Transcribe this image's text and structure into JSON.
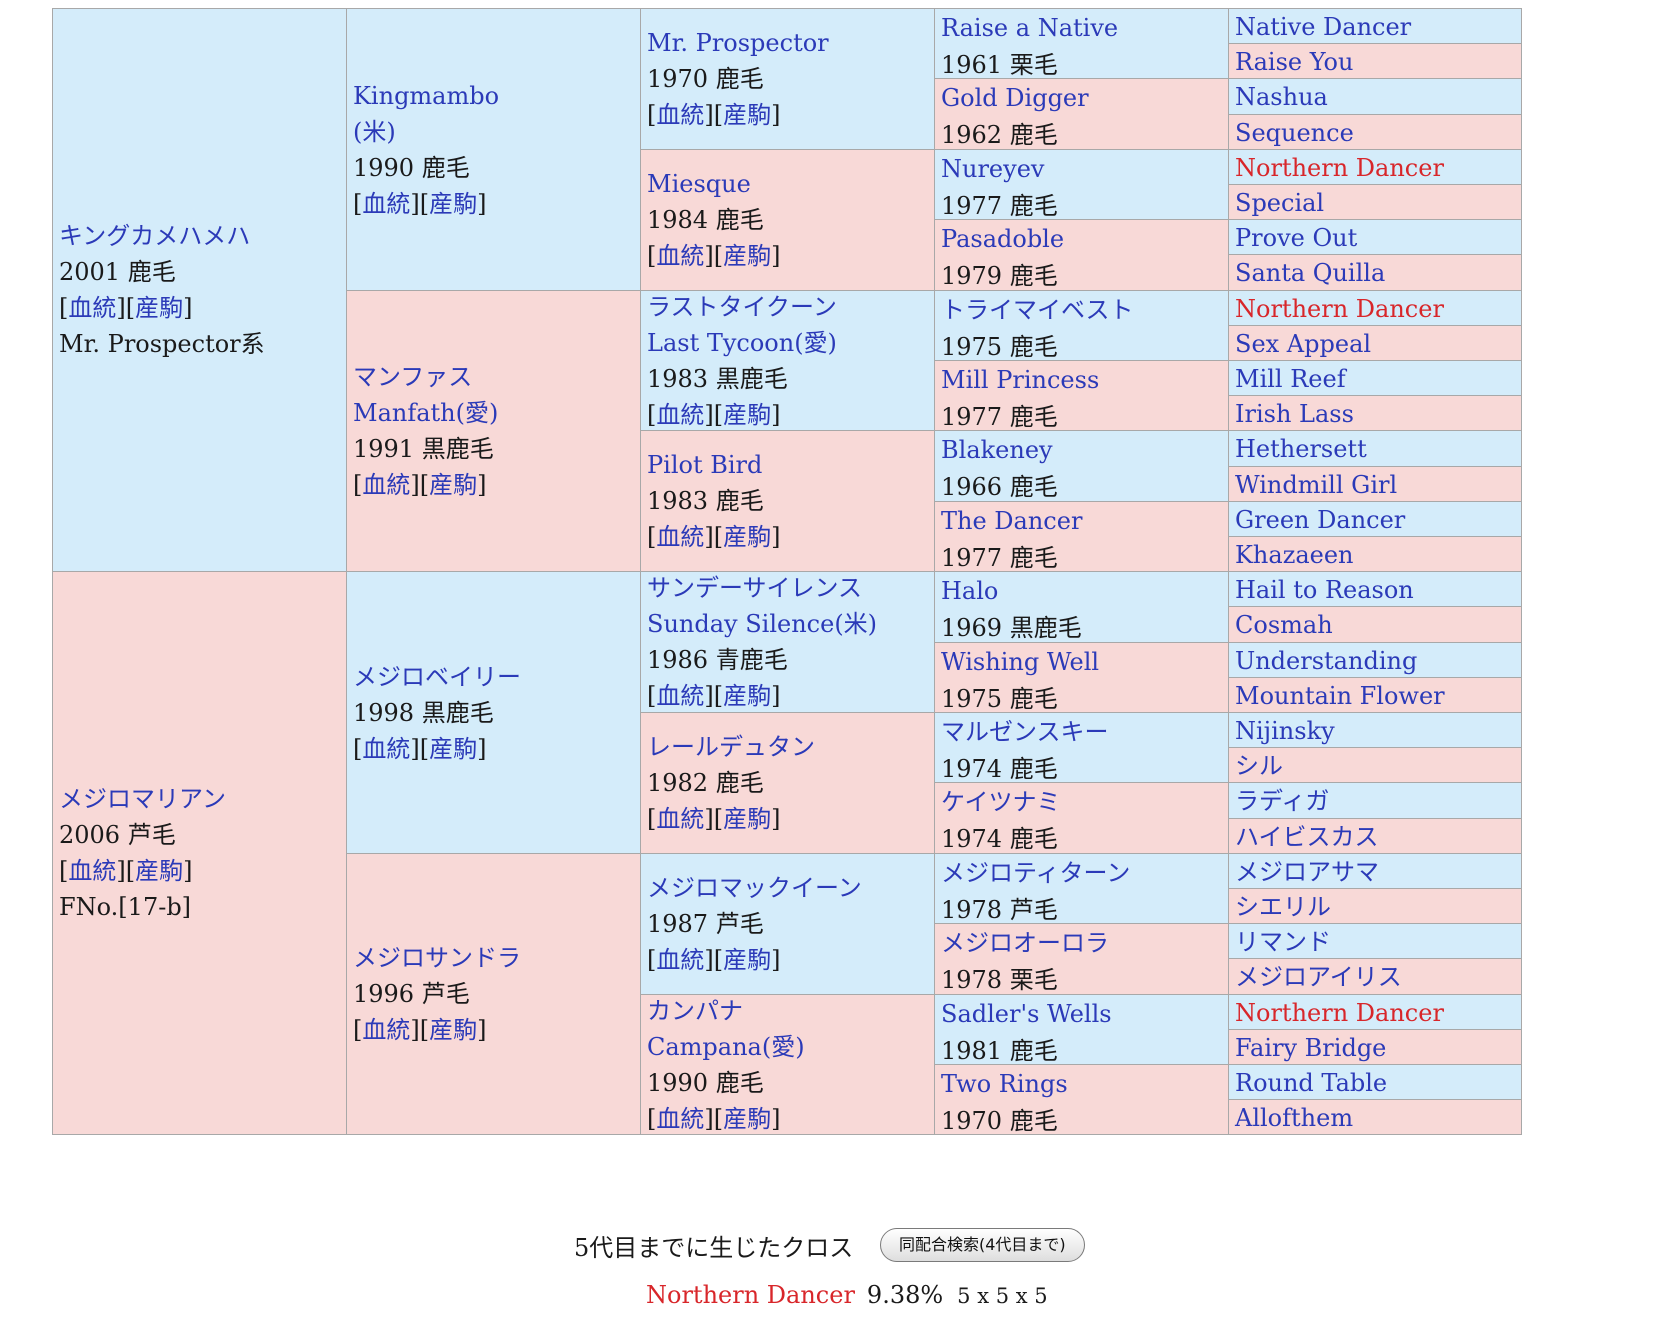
{
  "pedigree": {
    "g1": [
      {
        "name": "キングカメハメハ",
        "info": "2001 鹿毛",
        "extra": "Mr. Prospector系",
        "sex": "male"
      },
      {
        "name": "メジロマリアン",
        "info": "2006 芦毛",
        "extra": "FNo.[17-b]",
        "sex": "female"
      }
    ],
    "g2": [
      {
        "name": "Kingmambo",
        "name2": "(米)",
        "info": "1990 鹿毛",
        "sex": "male"
      },
      {
        "name": "マンファス",
        "name2": "Manfath(愛)",
        "info": "1991 黒鹿毛",
        "sex": "female"
      },
      {
        "name": "メジロベイリー",
        "info": "1998 黒鹿毛",
        "sex": "male"
      },
      {
        "name": "メジロサンドラ",
        "info": "1996 芦毛",
        "sex": "female"
      }
    ],
    "g3": [
      {
        "name": "Mr. Prospector",
        "info": "1970 鹿毛",
        "sex": "male"
      },
      {
        "name": "Miesque",
        "info": "1984 鹿毛",
        "sex": "female"
      },
      {
        "name": "ラストタイクーン",
        "name2": "Last Tycoon(愛)",
        "info": "1983 黒鹿毛",
        "sex": "male"
      },
      {
        "name": "Pilot Bird",
        "info": "1983 鹿毛",
        "sex": "female"
      },
      {
        "name": "サンデーサイレンス",
        "name2": "Sunday Silence(米)",
        "info": "1986 青鹿毛",
        "sex": "male"
      },
      {
        "name": "レールデュタン",
        "info": "1982 鹿毛",
        "sex": "female"
      },
      {
        "name": "メジロマックイーン",
        "info": "1987 芦毛",
        "sex": "male"
      },
      {
        "name": "カンパナ",
        "name2": "Campana(愛)",
        "info": "1990 鹿毛",
        "sex": "female"
      }
    ],
    "g4": [
      {
        "name": "Raise a Native",
        "info": "1961 栗毛",
        "sex": "male"
      },
      {
        "name": "Gold Digger",
        "info": "1962 鹿毛",
        "sex": "female"
      },
      {
        "name": "Nureyev",
        "info": "1977 鹿毛",
        "sex": "male"
      },
      {
        "name": "Pasadoble",
        "info": "1979 鹿毛",
        "sex": "female"
      },
      {
        "name": "トライマイベスト",
        "info": "1975 鹿毛",
        "sex": "male"
      },
      {
        "name": "Mill Princess",
        "info": "1977 鹿毛",
        "sex": "female"
      },
      {
        "name": "Blakeney",
        "info": "1966 鹿毛",
        "sex": "male"
      },
      {
        "name": "The Dancer",
        "info": "1977 鹿毛",
        "sex": "female"
      },
      {
        "name": "Halo",
        "info": "1969 黒鹿毛",
        "sex": "male"
      },
      {
        "name": "Wishing Well",
        "info": "1975 鹿毛",
        "sex": "female"
      },
      {
        "name": "マルゼンスキー",
        "info": "1974 鹿毛",
        "sex": "male"
      },
      {
        "name": "ケイツナミ",
        "info": "1974 鹿毛",
        "sex": "female"
      },
      {
        "name": "メジロティターン",
        "info": "1978 芦毛",
        "sex": "male"
      },
      {
        "name": "メジロオーロラ",
        "info": "1978 栗毛",
        "sex": "female"
      },
      {
        "name": "Sadler's Wells",
        "info": "1981 鹿毛",
        "sex": "male"
      },
      {
        "name": "Two Rings",
        "info": "1970 鹿毛",
        "sex": "female"
      }
    ],
    "g5": [
      {
        "name": "Native Dancer",
        "sex": "male"
      },
      {
        "name": "Raise You",
        "sex": "female"
      },
      {
        "name": "Nashua",
        "sex": "male"
      },
      {
        "name": "Sequence",
        "sex": "female"
      },
      {
        "name": "Northern Dancer",
        "sex": "male",
        "cross": true
      },
      {
        "name": "Special",
        "sex": "female"
      },
      {
        "name": "Prove Out",
        "sex": "male"
      },
      {
        "name": "Santa Quilla",
        "sex": "female"
      },
      {
        "name": "Northern Dancer",
        "sex": "male",
        "cross": true
      },
      {
        "name": "Sex Appeal",
        "sex": "female"
      },
      {
        "name": "Mill Reef",
        "sex": "male"
      },
      {
        "name": "Irish Lass",
        "sex": "female"
      },
      {
        "name": "Hethersett",
        "sex": "male"
      },
      {
        "name": "Windmill Girl",
        "sex": "female"
      },
      {
        "name": "Green Dancer",
        "sex": "male"
      },
      {
        "name": "Khazaeen",
        "sex": "female"
      },
      {
        "name": "Hail to Reason",
        "sex": "male"
      },
      {
        "name": "Cosmah",
        "sex": "female"
      },
      {
        "name": "Understanding",
        "sex": "male"
      },
      {
        "name": "Mountain Flower",
        "sex": "female"
      },
      {
        "name": "Nijinsky",
        "sex": "male"
      },
      {
        "name": "シル",
        "sex": "female"
      },
      {
        "name": "ラディガ",
        "sex": "male"
      },
      {
        "name": "ハイビスカス",
        "sex": "female"
      },
      {
        "name": "メジロアサマ",
        "sex": "male"
      },
      {
        "name": "シエリル",
        "sex": "female"
      },
      {
        "name": "リマンド",
        "sex": "male"
      },
      {
        "name": "メジロアイリス",
        "sex": "female"
      },
      {
        "name": "Northern Dancer",
        "sex": "male",
        "cross": true
      },
      {
        "name": "Fairy Bridge",
        "sex": "female"
      },
      {
        "name": "Round Table",
        "sex": "male"
      },
      {
        "name": "Allofthem",
        "sex": "female"
      }
    ]
  },
  "links": {
    "open": "[",
    "mid": "][",
    "close": "]",
    "pedigree": "血統",
    "offspring": "産駒"
  },
  "cross": {
    "title": "5代目までに生じたクロス",
    "search_button": "同配合検索(4代目まで)",
    "items": [
      {
        "horse": "Northern Dancer",
        "percent": "9.38%",
        "generations": "5 x 5 x 5"
      }
    ]
  },
  "colors": {
    "male_bg": "#d4ecfa",
    "female_bg": "#f8d9d7",
    "link": "#2b3ab8",
    "cross_red": "#d8262a",
    "border": "#a8a8a8"
  }
}
